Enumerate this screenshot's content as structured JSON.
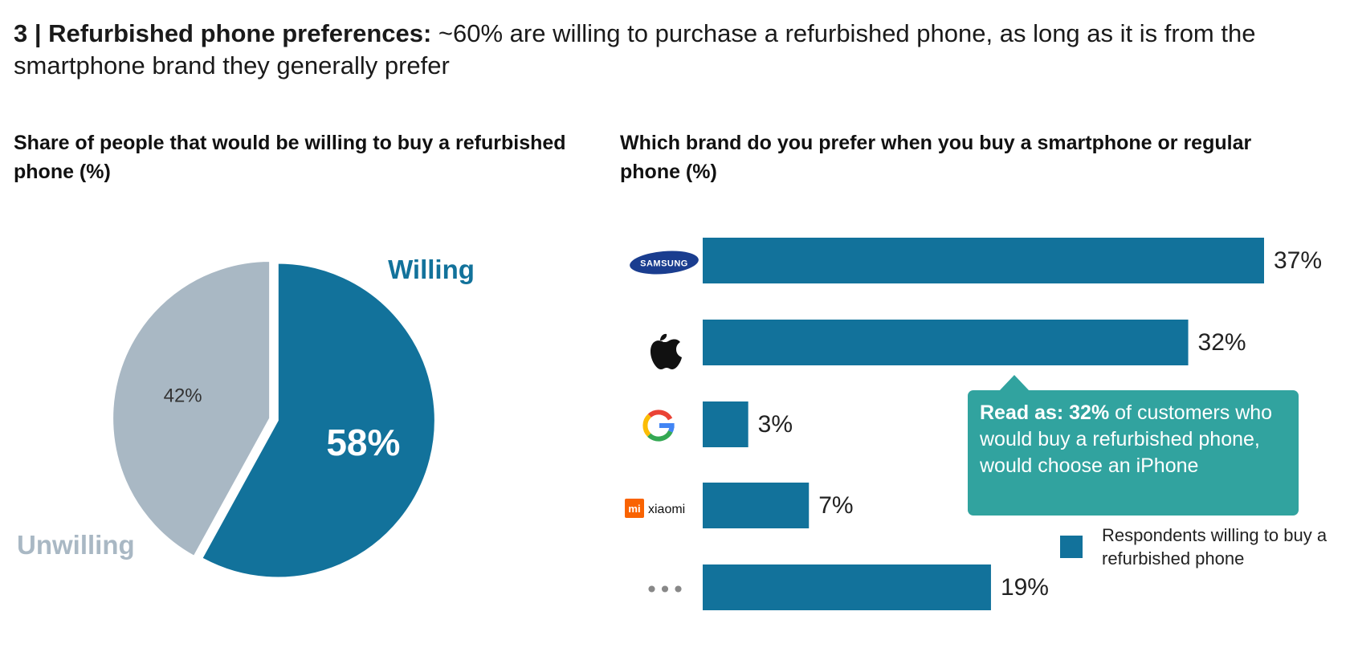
{
  "headline": {
    "bold": "3 | Refurbished phone preferences:",
    "rest": " ~60% are willing to purchase a refurbished phone, as long as it is from the smartphone brand they generally prefer"
  },
  "colors": {
    "primary": "#12729b",
    "secondary": "#a9b8c4",
    "callout": "#31a39f"
  },
  "chart_data": [
    {
      "type": "pie",
      "title": "Share of people that would be willing to buy a refurbished phone (%)",
      "slices": [
        {
          "name": "Willing",
          "value": 58,
          "label": "58%",
          "color": "#12729b"
        },
        {
          "name": "Unwilling",
          "value": 42,
          "label": "42%",
          "color": "#a9b8c4"
        }
      ]
    },
    {
      "type": "bar",
      "orientation": "horizontal",
      "title": "Which brand do you prefer when you buy a smartphone or regular phone (%)",
      "categories": [
        "Samsung",
        "Apple",
        "Google",
        "Xiaomi",
        "Other"
      ],
      "values": [
        37,
        32,
        3,
        7,
        19
      ],
      "value_labels": [
        "37%",
        "32%",
        "3%",
        "7%",
        "19%"
      ],
      "xlim": [
        0,
        37
      ],
      "legend": "Respondents willing to buy a refurbished phone",
      "annotation": {
        "bold": "Read as: 32%",
        "rest": " of customers who would buy a refurbished phone, would choose an iPhone"
      }
    }
  ],
  "logos": {
    "samsung_text": "SAMSUNG",
    "xiaomi_mark": "mi",
    "xiaomi_text": "xiaomi",
    "other_text": "•••"
  }
}
